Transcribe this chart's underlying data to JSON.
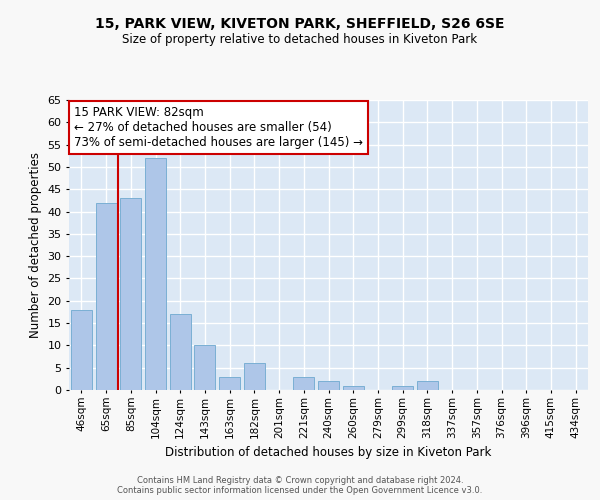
{
  "title1": "15, PARK VIEW, KIVETON PARK, SHEFFIELD, S26 6SE",
  "title2": "Size of property relative to detached houses in Kiveton Park",
  "xlabel": "Distribution of detached houses by size in Kiveton Park",
  "ylabel": "Number of detached properties",
  "categories": [
    "46sqm",
    "65sqm",
    "85sqm",
    "104sqm",
    "124sqm",
    "143sqm",
    "163sqm",
    "182sqm",
    "201sqm",
    "221sqm",
    "240sqm",
    "260sqm",
    "279sqm",
    "299sqm",
    "318sqm",
    "337sqm",
    "357sqm",
    "376sqm",
    "396sqm",
    "415sqm",
    "434sqm"
  ],
  "values": [
    18,
    42,
    43,
    52,
    17,
    10,
    3,
    6,
    0,
    3,
    2,
    1,
    0,
    1,
    2,
    0,
    0,
    0,
    0,
    0,
    0
  ],
  "bar_color": "#aec6e8",
  "bar_edge_color": "#7aafd4",
  "vline_x": 1.5,
  "vline_color": "#cc0000",
  "annotation_text": "15 PARK VIEW: 82sqm\n← 27% of detached houses are smaller (54)\n73% of semi-detached houses are larger (145) →",
  "annotation_box_color": "#ffffff",
  "annotation_box_edge_color": "#cc0000",
  "ylim": [
    0,
    65
  ],
  "yticks": [
    0,
    5,
    10,
    15,
    20,
    25,
    30,
    35,
    40,
    45,
    50,
    55,
    60,
    65
  ],
  "footer_text": "Contains HM Land Registry data © Crown copyright and database right 2024.\nContains public sector information licensed under the Open Government Licence v3.0.",
  "fig_background": "#f8f8f8",
  "plot_background": "#dce8f5",
  "grid_color": "#ffffff"
}
